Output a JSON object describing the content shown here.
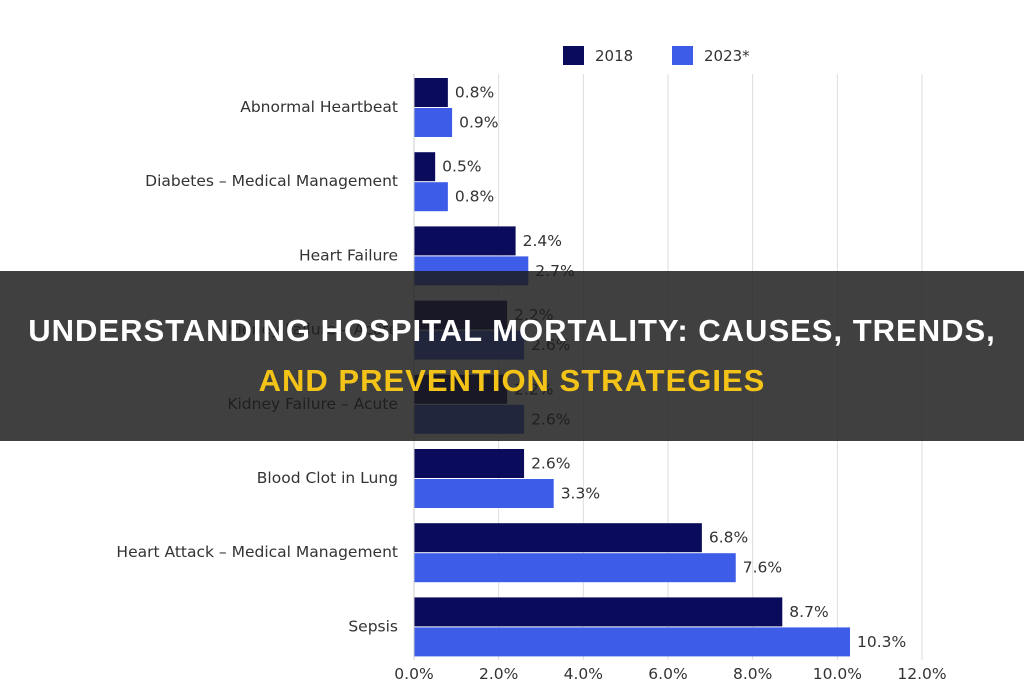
{
  "chart_data": {
    "type": "bar",
    "orientation": "horizontal",
    "categories": [
      "Abnormal Heartbeat",
      "Diabetes – Medical Management",
      "Heart Failure",
      "Kidney Failure – Acute",
      "Kidney Failure – Acute",
      "Blood Clot in Lung",
      "Heart Attack – Medical Management",
      "Sepsis"
    ],
    "series": [
      {
        "name": "2018",
        "color": "#0b0b5c",
        "values": [
          0.8,
          0.5,
          2.4,
          2.2,
          2.2,
          2.6,
          6.8,
          8.7
        ],
        "labels": [
          "0.8%",
          "0.5%",
          "2.4%",
          "2.2%",
          "2.2%",
          "2.6%",
          "6.8%",
          "8.7%"
        ]
      },
      {
        "name": "2023*",
        "color": "#3d5ce8",
        "values": [
          0.9,
          0.8,
          2.7,
          2.6,
          2.6,
          3.3,
          7.6,
          10.3
        ],
        "labels": [
          "0.9%",
          "0.8%",
          "2.7%",
          "2.6%",
          "2.6%",
          "3.3%",
          "7.6%",
          "10.3%"
        ]
      }
    ],
    "xlim": [
      0,
      12
    ],
    "xticks": [
      "0.0%",
      "2.0%",
      "4.0%",
      "6.0%",
      "8.0%",
      "10.0%",
      "12.0%"
    ],
    "grid": true,
    "legend_position": "top-right"
  },
  "banner": {
    "line1": "UNDERSTANDING HOSPITAL MORTALITY: CAUSES, TRENDS,",
    "line2": "AND PREVENTION STRATEGIES"
  }
}
